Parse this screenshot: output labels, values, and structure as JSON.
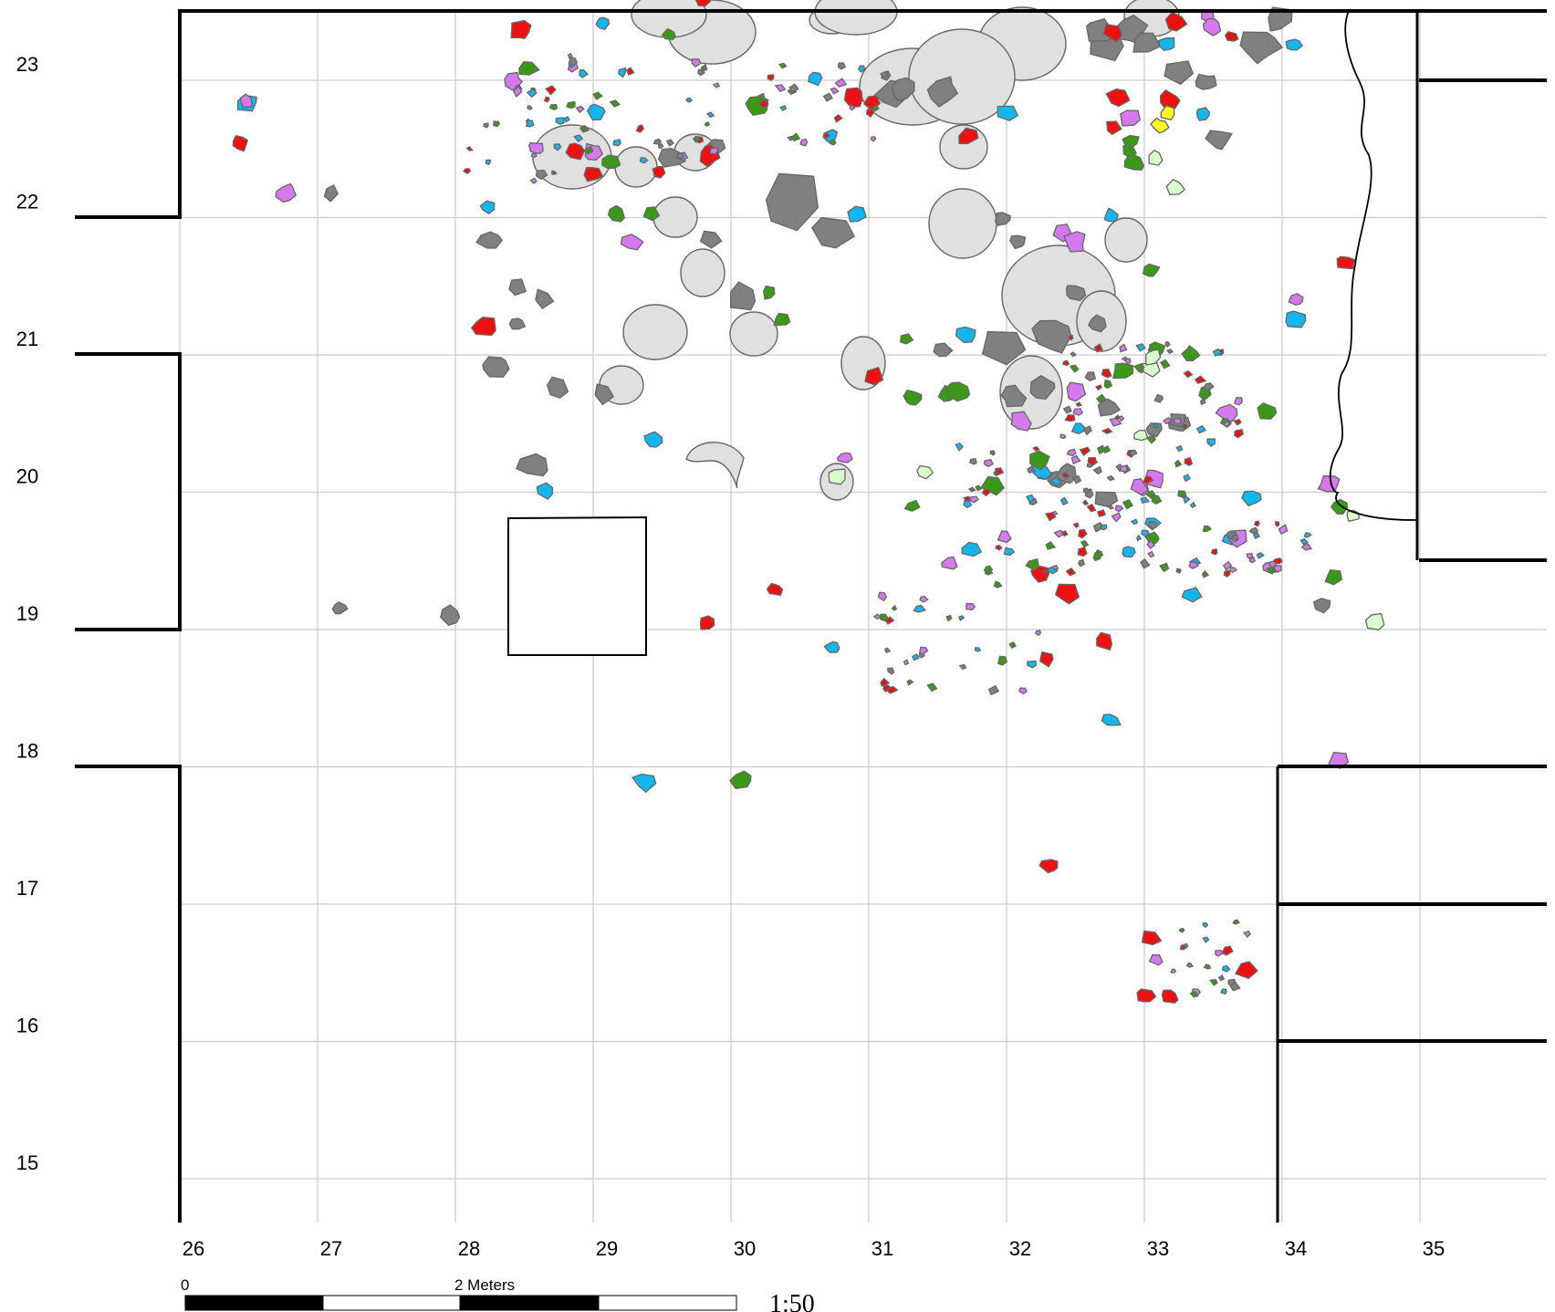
{
  "map": {
    "x_ticks": [
      "26",
      "27",
      "28",
      "29",
      "30",
      "31",
      "32",
      "33",
      "34",
      "35"
    ],
    "y_ticks": [
      "23",
      "22",
      "21",
      "20",
      "19",
      "18",
      "17",
      "16",
      "15"
    ],
    "scale_bar": {
      "start_label": "0",
      "mid_label": "2 Meters"
    },
    "ratio": "1:50",
    "colors": {
      "grid": "#cccccc",
      "wall": "#000000",
      "rock_dark": "#808080",
      "rock_light": "#e0e0e0",
      "outline": "#666666",
      "red": "#ee1111",
      "blue": "#11b6ee",
      "green": "#3a9a17",
      "purple": "#d47aee",
      "yellow": "#ffff22",
      "pale_green": "#d9ffcc"
    },
    "legend": []
  }
}
